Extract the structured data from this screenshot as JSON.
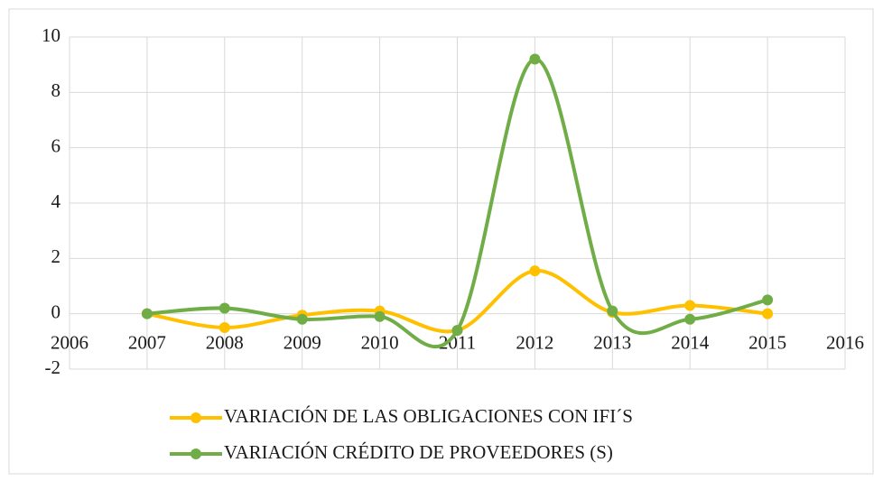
{
  "chart_data": {
    "type": "line",
    "smooth": true,
    "grid": true,
    "legend": "bottom",
    "x": [
      2007,
      2008,
      2009,
      2010,
      2011,
      2012,
      2013,
      2014,
      2015
    ],
    "xlim": [
      2006,
      2016
    ],
    "xticks": [
      2006,
      2007,
      2008,
      2009,
      2010,
      2011,
      2012,
      2013,
      2014,
      2015,
      2016
    ],
    "ylim": [
      -2,
      10
    ],
    "yticks": [
      -2,
      0,
      2,
      4,
      6,
      8,
      10
    ],
    "series": [
      {
        "name": "VARIACIÓN DE LAS OBLIGACIONES CON IFI´S",
        "color": "#ffc000",
        "values": [
          0,
          -0.5,
          -0.05,
          0.1,
          -0.6,
          1.55,
          0.05,
          0.3,
          0
        ]
      },
      {
        "name": "VARIACIÓN CRÉDITO DE PROVEEDORES (S)",
        "color": "#70ad47",
        "values": [
          0,
          0.2,
          -0.2,
          -0.1,
          -0.6,
          9.2,
          0.1,
          -0.2,
          0.5
        ]
      }
    ]
  }
}
